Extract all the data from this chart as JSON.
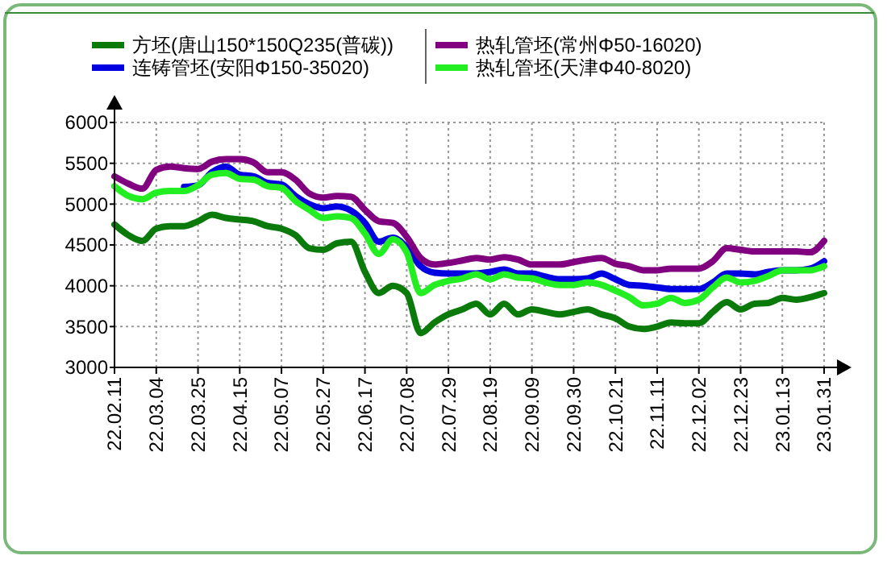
{
  "chart_data": {
    "type": "line",
    "categories": [
      "22.02.11",
      null,
      null,
      "22.03.04",
      null,
      null,
      "22.03.25",
      null,
      null,
      "22.04.15",
      null,
      null,
      "22.05.07",
      null,
      null,
      "22.05.27",
      null,
      null,
      "22.06.17",
      null,
      null,
      "22.07.08",
      null,
      null,
      "22.07.29",
      null,
      null,
      "22.08.19",
      null,
      null,
      "22.09.09",
      null,
      null,
      "22.09.30",
      null,
      null,
      "22.10.21",
      null,
      null,
      "22.11.11",
      null,
      null,
      "22.12.02",
      null,
      null,
      "22.12.23",
      null,
      null,
      "23.01.13",
      null,
      null,
      "23.01.31"
    ],
    "series": [
      {
        "name": "方坯(唐山150*150Q235(普碳))",
        "color": "#0a7a0a",
        "values": [
          4750,
          4620,
          4550,
          4700,
          4730,
          4730,
          4790,
          4870,
          4830,
          4810,
          4790,
          4730,
          4700,
          4620,
          4460,
          4440,
          4520,
          4540,
          4170,
          3910,
          4000,
          3910,
          3420,
          3550,
          3650,
          3710,
          3780,
          3650,
          3780,
          3650,
          3710,
          3680,
          3650,
          3680,
          3710,
          3650,
          3600,
          3500,
          3470,
          3500,
          3550,
          3540,
          3540,
          3680,
          3800,
          3710,
          3780,
          3790,
          3850,
          3830,
          3860,
          3910
        ]
      },
      {
        "name": "连铸管坯(安阳Φ150-35020)",
        "color": "#0000e0",
        "values": [
          null,
          null,
          null,
          null,
          null,
          5210,
          5230,
          5390,
          5460,
          5360,
          5340,
          5260,
          5240,
          5100,
          5000,
          4950,
          4970,
          4920,
          4770,
          4540,
          4590,
          4470,
          4240,
          4160,
          4150,
          4150,
          4150,
          4170,
          4200,
          4150,
          4150,
          4110,
          4080,
          4080,
          4090,
          4150,
          4080,
          4010,
          4000,
          3980,
          3960,
          3960,
          3960,
          4040,
          4150,
          4150,
          4140,
          4170,
          4190,
          4190,
          4210,
          4300
        ]
      },
      {
        "name": "热轧管坯(常州Φ50-16020)",
        "color": "#800080",
        "values": [
          5340,
          5250,
          5190,
          5420,
          5460,
          5440,
          5430,
          5520,
          5550,
          5550,
          5510,
          5390,
          5390,
          5300,
          5130,
          5080,
          5100,
          5090,
          4930,
          4790,
          4770,
          4600,
          4340,
          4260,
          4280,
          4310,
          4340,
          4320,
          4350,
          4320,
          4260,
          4260,
          4260,
          4290,
          4320,
          4340,
          4270,
          4240,
          4190,
          4190,
          4210,
          4210,
          4210,
          4300,
          4460,
          4440,
          4420,
          4420,
          4420,
          4420,
          4410,
          4550
        ]
      },
      {
        "name": "热轧管坯(天津Φ40-8020)",
        "color": "#22ee22",
        "values": [
          5220,
          5100,
          5060,
          5140,
          5160,
          5160,
          5230,
          5360,
          5380,
          5310,
          5300,
          5220,
          5200,
          5040,
          4930,
          4830,
          4850,
          4830,
          4640,
          4390,
          4570,
          4410,
          3910,
          4010,
          4060,
          4090,
          4140,
          4080,
          4140,
          4100,
          4090,
          4040,
          4010,
          4010,
          4040,
          4010,
          3940,
          3860,
          3760,
          3780,
          3850,
          3790,
          3830,
          3980,
          4100,
          4040,
          4060,
          4120,
          4190,
          4190,
          4190,
          4240
        ]
      }
    ],
    "ylim": [
      3000,
      6000
    ],
    "yticks": [
      3000,
      3500,
      4000,
      4500,
      5000,
      5500,
      6000
    ],
    "grid": true,
    "legend": "top",
    "line_style": "solid"
  }
}
